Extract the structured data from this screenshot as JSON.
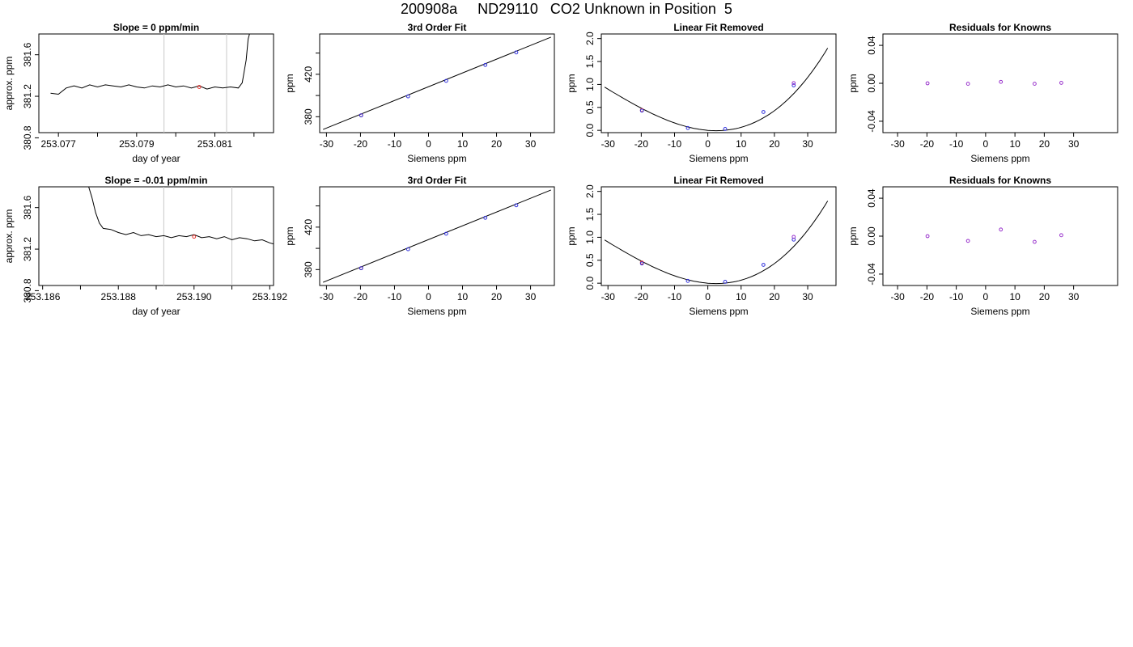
{
  "page_title": "200908a     ND29110   CO2 Unknown in Position  5",
  "chart_data": [
    {
      "type": "line",
      "row": 1,
      "col": 1,
      "title": "Slope =  0  ppm/min",
      "xlabel": "day of year",
      "ylabel": "approx. ppm",
      "xlim": [
        253.0765,
        253.0825
      ],
      "ylim": [
        380.85,
        381.8
      ],
      "xticks": [
        253.077,
        253.078,
        253.079,
        253.08,
        253.081,
        253.082
      ],
      "xtick_labels": [
        "253.077",
        "",
        "253.079",
        "",
        "253.081",
        ""
      ],
      "yticks": [
        380.8,
        381.2,
        381.6
      ],
      "ytick_labels": [
        "380.8",
        "381.2",
        "381.6"
      ],
      "vlines": [
        253.0797,
        253.0813
      ],
      "series": [
        {
          "x": [
            253.0768,
            253.077,
            253.0772,
            253.0774,
            253.0776,
            253.0778,
            253.078,
            253.0782,
            253.0784,
            253.0786,
            253.0788,
            253.079,
            253.0792,
            253.0794,
            253.0796,
            253.0798,
            253.08,
            253.0802,
            253.0804,
            253.0806,
            253.0808,
            253.081,
            253.0812,
            253.0814,
            253.0816,
            253.0817,
            253.0818,
            253.08185,
            253.0819
          ],
          "y": [
            381.23,
            381.22,
            381.28,
            381.3,
            381.28,
            381.31,
            381.29,
            381.31,
            381.3,
            381.29,
            381.31,
            381.29,
            381.28,
            381.3,
            381.29,
            381.31,
            381.29,
            381.3,
            381.28,
            381.3,
            381.27,
            381.29,
            381.28,
            381.29,
            381.28,
            381.33,
            381.55,
            381.75,
            381.82
          ]
        }
      ],
      "marker": {
        "x": 253.0806,
        "y": 381.29,
        "color": "#e8302b"
      }
    },
    {
      "type": "scatter",
      "row": 1,
      "col": 2,
      "title": "3rd Order Fit",
      "xlabel": "Siemens ppm",
      "ylabel": "ppm",
      "xlim": [
        -32,
        37
      ],
      "ylim": [
        365,
        458
      ],
      "xticks": [
        -30,
        -20,
        -10,
        0,
        10,
        20,
        30
      ],
      "xtick_labels": [
        "-30",
        "-20",
        "-10",
        "0",
        "10",
        "20",
        "30"
      ],
      "yticks": [
        380,
        400,
        420,
        440
      ],
      "ytick_labels": [
        "380",
        "",
        "420",
        ""
      ],
      "fit": {
        "kind": "line",
        "x": [
          -31,
          36
        ],
        "y": [
          368,
          455
        ]
      },
      "points": [
        {
          "x": -19.8,
          "y": 381.3,
          "color": "#e8302b"
        },
        {
          "x": -19.8,
          "y": 381.3,
          "color": "#3333dd"
        },
        {
          "x": -6,
          "y": 399.2,
          "color": "#3333dd"
        },
        {
          "x": 5.2,
          "y": 413.8,
          "color": "#3333dd"
        },
        {
          "x": 16.7,
          "y": 428.8,
          "color": "#3333dd"
        },
        {
          "x": 25.8,
          "y": 440.6,
          "color": "#3333dd"
        }
      ]
    },
    {
      "type": "scatter",
      "row": 1,
      "col": 3,
      "title": "Linear Fit Removed",
      "xlabel": "Siemens ppm",
      "ylabel": "ppm",
      "xlim": [
        -32,
        38.5
      ],
      "ylim": [
        -0.05,
        2.1
      ],
      "xticks": [
        -30,
        -20,
        -10,
        0,
        10,
        20,
        30
      ],
      "xtick_labels": [
        "-30",
        "-20",
        "-10",
        "0",
        "10",
        "20",
        "30"
      ],
      "yticks": [
        0,
        0.5,
        1,
        1.5,
        2
      ],
      "ytick_labels": [
        "0.0",
        "0.5",
        "1.0",
        "1.5",
        "2.0"
      ],
      "fit": {
        "kind": "poly3",
        "coef": [
          0,
          -0.0059,
          0.00114,
          1.13e-05
        ],
        "xrange": [
          -31,
          36
        ]
      },
      "points": [
        {
          "x": -19.8,
          "y": 0.44,
          "color": "#e8302b"
        },
        {
          "x": -19.8,
          "y": 0.43,
          "color": "#3333dd"
        },
        {
          "x": -6,
          "y": 0.05,
          "color": "#3333dd"
        },
        {
          "x": 5.2,
          "y": 0.03,
          "color": "#3333dd"
        },
        {
          "x": 16.7,
          "y": 0.4,
          "color": "#3333dd"
        },
        {
          "x": 25.8,
          "y": 0.98,
          "color": "#3333dd"
        },
        {
          "x": 25.8,
          "y": 1.03,
          "color": "#9933cc"
        }
      ]
    },
    {
      "type": "scatter",
      "row": 1,
      "col": 4,
      "title": "Residuals for Knowns",
      "xlabel": "Siemens ppm",
      "ylabel": "ppm",
      "xlim": [
        -35,
        45
      ],
      "ylim": [
        -0.052,
        0.052
      ],
      "xticks": [
        -30,
        -20,
        -10,
        0,
        10,
        20,
        30
      ],
      "xtick_labels": [
        "-30",
        "-20",
        "-10",
        "0",
        "10",
        "20",
        "30"
      ],
      "yticks": [
        -0.04,
        0,
        0.04
      ],
      "ytick_labels": [
        "-0.04",
        "0.00",
        "0.04"
      ],
      "points": [
        {
          "x": -19.8,
          "y": 0.0,
          "color": "#9933cc"
        },
        {
          "x": -6,
          "y": -0.0005,
          "color": "#9933cc"
        },
        {
          "x": 5.2,
          "y": 0.0015,
          "color": "#9933cc"
        },
        {
          "x": 16.7,
          "y": -0.0005,
          "color": "#9933cc"
        },
        {
          "x": 25.8,
          "y": 0.0005,
          "color": "#9933cc"
        }
      ]
    },
    {
      "type": "line",
      "row": 2,
      "col": 1,
      "title": "Slope =  -0.01  ppm/min",
      "xlabel": "day of year",
      "ylabel": "approx. ppm",
      "xlim": [
        253.1859,
        253.1921
      ],
      "ylim": [
        380.85,
        381.8
      ],
      "xticks": [
        253.186,
        253.187,
        253.188,
        253.189,
        253.19,
        253.191,
        253.192
      ],
      "xtick_labels": [
        "253.186",
        "",
        "253.188",
        "",
        "253.190",
        "",
        "253.192"
      ],
      "yticks": [
        380.8,
        381.2,
        381.6
      ],
      "ytick_labels": [
        "380.8",
        "381.2",
        "381.6"
      ],
      "vlines": [
        253.1892,
        253.191
      ],
      "series": [
        {
          "x": [
            253.1872,
            253.1873,
            253.1874,
            253.1875,
            253.1876,
            253.1878,
            253.188,
            253.1882,
            253.1884,
            253.1886,
            253.1888,
            253.189,
            253.1892,
            253.1894,
            253.1896,
            253.1898,
            253.19,
            253.1902,
            253.1904,
            253.1906,
            253.1908,
            253.191,
            253.1912,
            253.1914,
            253.1916,
            253.1918,
            253.192,
            253.1921
          ],
          "y": [
            381.82,
            381.7,
            381.55,
            381.45,
            381.4,
            381.39,
            381.36,
            381.34,
            381.36,
            381.33,
            381.34,
            381.32,
            381.33,
            381.31,
            381.33,
            381.32,
            381.34,
            381.31,
            381.32,
            381.3,
            381.32,
            381.29,
            381.31,
            381.3,
            381.28,
            381.29,
            381.26,
            381.25
          ]
        }
      ],
      "marker": {
        "x": 253.19,
        "y": 381.32,
        "color": "#e8302b"
      }
    },
    {
      "type": "scatter",
      "row": 2,
      "col": 2,
      "title": "3rd Order Fit",
      "xlabel": "Siemens ppm",
      "ylabel": "ppm",
      "xlim": [
        -32,
        37
      ],
      "ylim": [
        365,
        458
      ],
      "xticks": [
        -30,
        -20,
        -10,
        0,
        10,
        20,
        30
      ],
      "xtick_labels": [
        "-30",
        "-20",
        "-10",
        "0",
        "10",
        "20",
        "30"
      ],
      "yticks": [
        380,
        400,
        420,
        440
      ],
      "ytick_labels": [
        "380",
        "",
        "420",
        ""
      ],
      "fit": {
        "kind": "line",
        "x": [
          -31,
          36
        ],
        "y": [
          368,
          455
        ]
      },
      "points": [
        {
          "x": -19.8,
          "y": 381.3,
          "color": "#e8302b"
        },
        {
          "x": -19.8,
          "y": 381.3,
          "color": "#3333dd"
        },
        {
          "x": -6,
          "y": 399.2,
          "color": "#3333dd"
        },
        {
          "x": 5.2,
          "y": 413.8,
          "color": "#3333dd"
        },
        {
          "x": 16.7,
          "y": 428.8,
          "color": "#3333dd"
        },
        {
          "x": 25.8,
          "y": 440.6,
          "color": "#3333dd"
        }
      ]
    },
    {
      "type": "scatter",
      "row": 2,
      "col": 3,
      "title": "Linear Fit Removed",
      "xlabel": "Siemens ppm",
      "ylabel": "ppm",
      "xlim": [
        -32,
        38.5
      ],
      "ylim": [
        -0.05,
        2.1
      ],
      "xticks": [
        -30,
        -20,
        -10,
        0,
        10,
        20,
        30
      ],
      "xtick_labels": [
        "-30",
        "-20",
        "-10",
        "0",
        "10",
        "20",
        "30"
      ],
      "yticks": [
        0,
        0.5,
        1,
        1.5,
        2
      ],
      "ytick_labels": [
        "0.0",
        "0.5",
        "1.0",
        "1.5",
        "2.0"
      ],
      "fit": {
        "kind": "poly3",
        "coef": [
          0,
          -0.0059,
          0.00114,
          1.13e-05
        ],
        "xrange": [
          -31,
          36
        ]
      },
      "points": [
        {
          "x": -19.8,
          "y": 0.45,
          "color": "#e8302b"
        },
        {
          "x": -19.8,
          "y": 0.43,
          "color": "#3333dd"
        },
        {
          "x": -6,
          "y": 0.05,
          "color": "#3333dd"
        },
        {
          "x": 5.2,
          "y": 0.03,
          "color": "#3333dd"
        },
        {
          "x": 16.7,
          "y": 0.4,
          "color": "#3333dd"
        },
        {
          "x": 25.8,
          "y": 0.95,
          "color": "#3333dd"
        },
        {
          "x": 25.8,
          "y": 1.01,
          "color": "#9933cc"
        }
      ]
    },
    {
      "type": "scatter",
      "row": 2,
      "col": 4,
      "title": "Residuals for Knowns",
      "xlabel": "Siemens ppm",
      "ylabel": "ppm",
      "xlim": [
        -35,
        45
      ],
      "ylim": [
        -0.052,
        0.052
      ],
      "xticks": [
        -30,
        -20,
        -10,
        0,
        10,
        20,
        30
      ],
      "xtick_labels": [
        "-30",
        "-20",
        "-10",
        "0",
        "10",
        "20",
        "30"
      ],
      "yticks": [
        -0.04,
        0,
        0.04
      ],
      "ytick_labels": [
        "-0.04",
        "0.00",
        "0.04"
      ],
      "points": [
        {
          "x": -19.8,
          "y": 0.0,
          "color": "#9933cc"
        },
        {
          "x": -6,
          "y": -0.005,
          "color": "#9933cc"
        },
        {
          "x": 5.2,
          "y": 0.007,
          "color": "#9933cc"
        },
        {
          "x": 16.7,
          "y": -0.006,
          "color": "#9933cc"
        },
        {
          "x": 25.8,
          "y": 0.001,
          "color": "#9933cc"
        }
      ]
    }
  ]
}
